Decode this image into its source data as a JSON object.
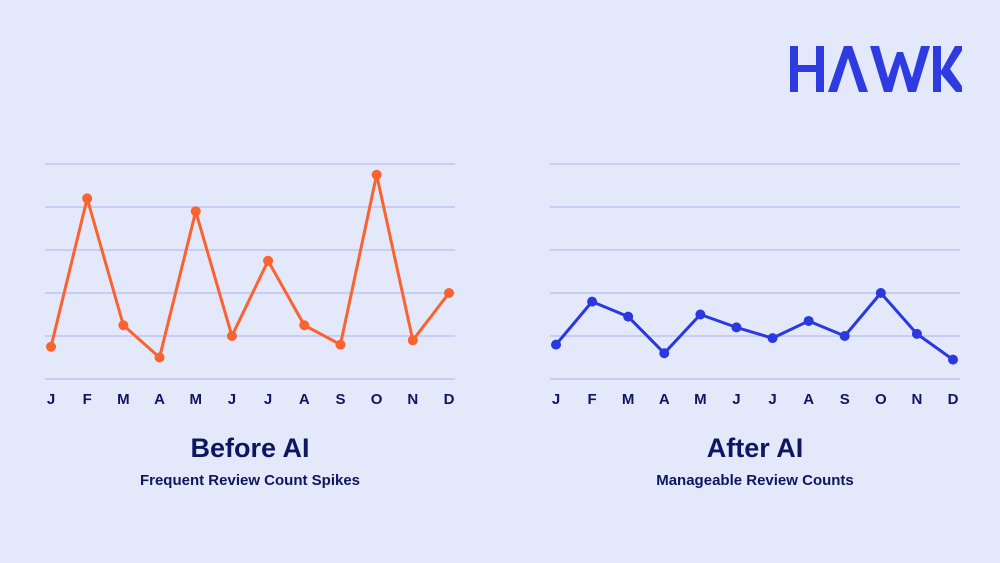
{
  "brand": {
    "name": "HAWK",
    "color": "#2d3be0"
  },
  "colors": {
    "background": "#e4e8fb",
    "gridline": "#b6bdf3",
    "before_series": "#fa6230",
    "after_series": "#2a38e0",
    "text": "#0f1660"
  },
  "chart_data": [
    {
      "type": "line",
      "title": "Before AI",
      "subtitle": "Frequent Review Count Spikes",
      "categories": [
        "J",
        "F",
        "M",
        "A",
        "M",
        "J",
        "J",
        "A",
        "S",
        "O",
        "N",
        "D"
      ],
      "series": [
        {
          "name": "Before AI",
          "values": [
            0.75,
            4.2,
            1.25,
            0.5,
            3.9,
            1.0,
            2.75,
            1.25,
            0.8,
            4.75,
            0.9,
            2.0
          ]
        }
      ],
      "xlabel": "",
      "ylabel": "",
      "ylim": [
        0,
        5
      ],
      "grid": true,
      "gridlines": 6,
      "legend": "none"
    },
    {
      "type": "line",
      "title": "After AI",
      "subtitle": "Manageable Review Counts",
      "categories": [
        "J",
        "F",
        "M",
        "A",
        "M",
        "J",
        "J",
        "A",
        "S",
        "O",
        "N",
        "D"
      ],
      "series": [
        {
          "name": "After AI",
          "values": [
            0.8,
            1.8,
            1.45,
            0.6,
            1.5,
            1.2,
            0.95,
            1.35,
            1.0,
            2.0,
            1.05,
            0.45
          ]
        }
      ],
      "xlabel": "",
      "ylabel": "",
      "ylim": [
        0,
        5
      ],
      "grid": true,
      "gridlines": 6,
      "legend": "none"
    }
  ]
}
